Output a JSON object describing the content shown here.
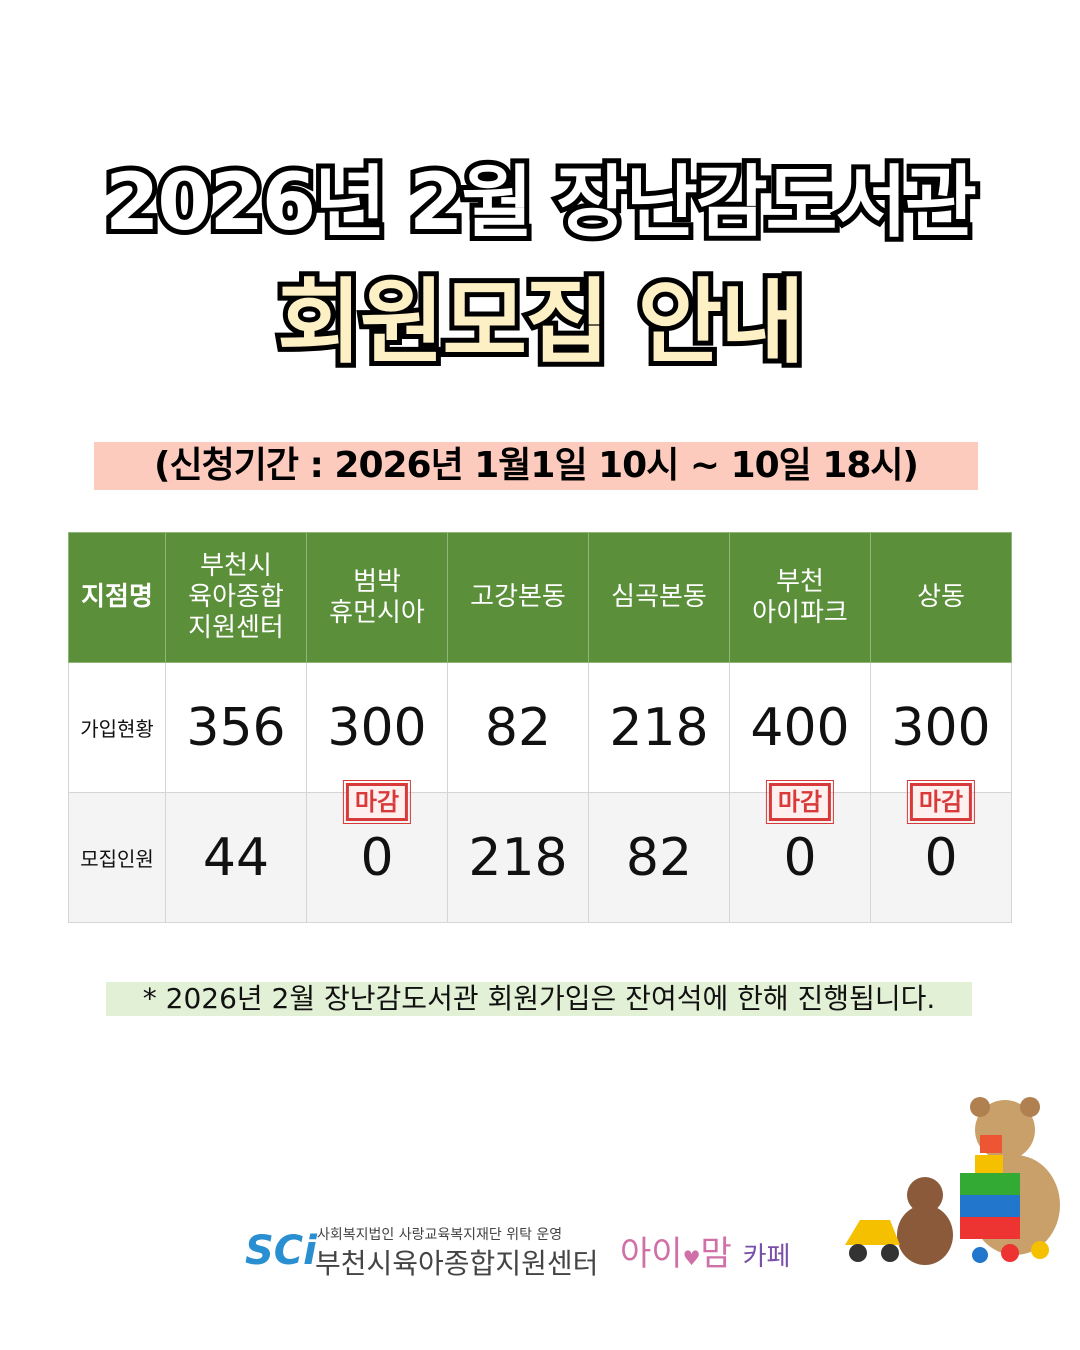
{
  "title": {
    "line1": "2026년 2월 장난감도서관",
    "line2": "회원모집 안내"
  },
  "period": "(신청기간 : 2026년 1월1일 10시 ~ 10일 18시)",
  "table": {
    "headers": [
      "지점명",
      "부천시\n육아종합\n지원센터",
      "범박\n휴먼시아",
      "고강본동",
      "심곡본동",
      "부천\n아이파크",
      "상동"
    ],
    "rows": [
      {
        "label": "가입현황",
        "values": [
          "356",
          "300",
          "82",
          "218",
          "400",
          "300"
        ]
      },
      {
        "label": "모집인원",
        "values": [
          "44",
          "0",
          "218",
          "82",
          "0",
          "0"
        ],
        "closed": [
          false,
          true,
          false,
          false,
          true,
          true
        ]
      }
    ],
    "closed_label": "마감",
    "colors": {
      "header": "#5b8f3a",
      "stamp": "#d83a3a"
    }
  },
  "note": "* 2026년 2월 장난감도서관 회원가입은 잔여석에 한해 진행됩니다.",
  "footer": {
    "org_sub": "사회복지법인 사랑교육복지재단 위탁 운영",
    "org_name": "부천시육아종합지원센터",
    "org_logo": "SCi",
    "cafe_a": "아이",
    "cafe_b": "맘",
    "cafe_c": "카페",
    "cafe_heart": "♥"
  }
}
